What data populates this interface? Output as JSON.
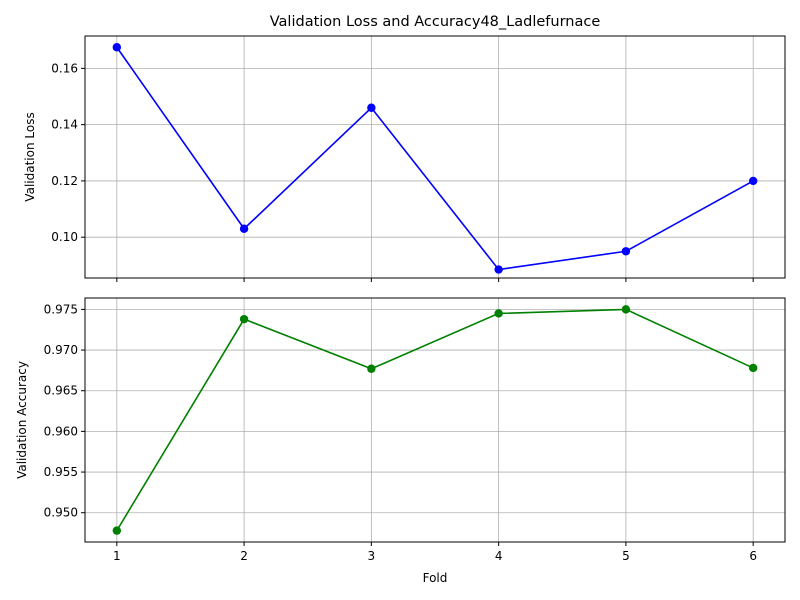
{
  "figure_title": "Validation Loss and Accuracy48_Ladlefurnace",
  "chart_data": [
    {
      "type": "line",
      "title": "Validation Loss and Accuracy48_Ladlefurnace",
      "xlabel": "",
      "ylabel": "Validation Loss",
      "x": [
        1,
        2,
        3,
        4,
        5,
        6
      ],
      "series": [
        {
          "values": [
            0.1675,
            0.103,
            0.146,
            0.0885,
            0.095,
            0.12
          ],
          "color": "#0000ff",
          "marker": "circle"
        }
      ],
      "xlim": [
        0.75,
        6.25
      ],
      "ylim": [
        0.0855,
        0.1715
      ],
      "yticks": [
        0.1,
        0.12,
        0.14,
        0.16
      ],
      "ytick_labels": [
        "0.10",
        "0.12",
        "0.14",
        "0.16"
      ],
      "xticks": [
        1,
        2,
        3,
        4,
        5,
        6
      ],
      "xtick_labels_visible": false,
      "grid": true
    },
    {
      "type": "line",
      "xlabel": "Fold",
      "ylabel": "Validation Accuracy",
      "x": [
        1,
        2,
        3,
        4,
        5,
        6
      ],
      "series": [
        {
          "values": [
            0.9478,
            0.9738,
            0.9677,
            0.9745,
            0.975,
            0.9678
          ],
          "color": "#008000",
          "marker": "circle"
        }
      ],
      "xlim": [
        0.75,
        6.25
      ],
      "ylim": [
        0.9464,
        0.9764
      ],
      "yticks": [
        0.95,
        0.955,
        0.96,
        0.965,
        0.97,
        0.975
      ],
      "ytick_labels": [
        "0.950",
        "0.955",
        "0.960",
        "0.965",
        "0.970",
        "0.975"
      ],
      "xticks": [
        1,
        2,
        3,
        4,
        5,
        6
      ],
      "xtick_labels": [
        "1",
        "2",
        "3",
        "4",
        "5",
        "6"
      ],
      "grid": true
    }
  ]
}
